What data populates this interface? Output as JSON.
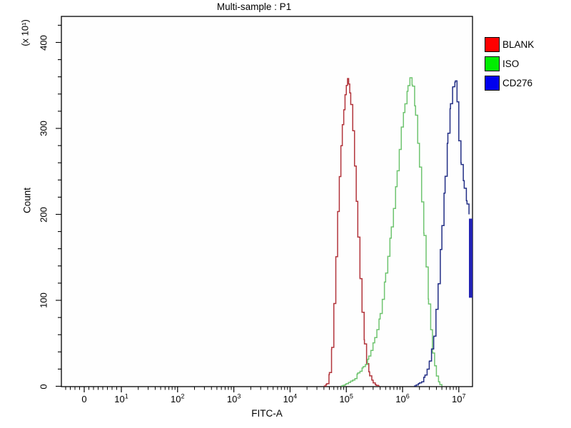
{
  "title": "Multi-sample : P1",
  "axes": {
    "x_label": "FITC-A",
    "y_label": "Count",
    "y_unit_note": "(x 10¹)"
  },
  "legend": {
    "items": [
      {
        "label": "BLANK",
        "color": "#ff0000"
      },
      {
        "label": "ISO",
        "color": "#00ee00"
      },
      {
        "label": "CD276",
        "color": "#0000ee"
      }
    ]
  },
  "chart_data": {
    "type": "line",
    "subtype": "flow-cytometry-histogram-overlay",
    "title": "Multi-sample : P1",
    "xlabel": "FITC-A",
    "ylabel": "Count",
    "y_unit_multiplier": "(x 10¹)",
    "x_scale": "biexponential-log",
    "x_ticks": [
      0,
      10,
      100,
      1000,
      10000,
      100000,
      1000000,
      10000000
    ],
    "y_ticks": [
      0,
      100,
      200,
      300,
      400
    ],
    "ylim": [
      0,
      430
    ],
    "grid": false,
    "legend_position": "outside-top-right",
    "series": [
      {
        "name": "BLANK",
        "legend_color": "#ff0000",
        "line_color": "#b2343b",
        "peak_x": 105000,
        "peak_count": 357,
        "points": [
          [
            40000,
            0
          ],
          [
            45000,
            3
          ],
          [
            50000,
            15
          ],
          [
            55000,
            45
          ],
          [
            60000,
            95
          ],
          [
            65000,
            150
          ],
          [
            70000,
            205
          ],
          [
            75000,
            245
          ],
          [
            80000,
            280
          ],
          [
            85000,
            305
          ],
          [
            90000,
            322
          ],
          [
            95000,
            338
          ],
          [
            100000,
            348
          ],
          [
            105000,
            357
          ],
          [
            110000,
            352
          ],
          [
            115000,
            342
          ],
          [
            120000,
            328
          ],
          [
            130000,
            298
          ],
          [
            140000,
            258
          ],
          [
            150000,
            215
          ],
          [
            160000,
            172
          ],
          [
            175000,
            125
          ],
          [
            190000,
            85
          ],
          [
            210000,
            50
          ],
          [
            230000,
            28
          ],
          [
            260000,
            12
          ],
          [
            300000,
            4
          ],
          [
            340000,
            1
          ],
          [
            380000,
            0
          ]
        ]
      },
      {
        "name": "ISO",
        "legend_color": "#00ee00",
        "line_color": "#6ec46f",
        "peak_x": 1350000,
        "peak_count": 360,
        "points": [
          [
            80000,
            0
          ],
          [
            100000,
            3
          ],
          [
            130000,
            8
          ],
          [
            160000,
            14
          ],
          [
            200000,
            22
          ],
          [
            250000,
            35
          ],
          [
            320000,
            55
          ],
          [
            400000,
            85
          ],
          [
            500000,
            130
          ],
          [
            630000,
            185
          ],
          [
            800000,
            250
          ],
          [
            950000,
            300
          ],
          [
            1100000,
            330
          ],
          [
            1250000,
            350
          ],
          [
            1350000,
            360
          ],
          [
            1500000,
            348
          ],
          [
            1700000,
            315
          ],
          [
            2000000,
            255
          ],
          [
            2400000,
            175
          ],
          [
            2900000,
            95
          ],
          [
            3400000,
            40
          ],
          [
            4000000,
            12
          ],
          [
            4600000,
            2
          ],
          [
            5000000,
            0
          ]
        ]
      },
      {
        "name": "CD276",
        "legend_color": "#0000ee",
        "line_color": "#222e85",
        "peak_x": 8700000,
        "peak_count": 355,
        "points": [
          [
            1600000,
            0
          ],
          [
            2000000,
            4
          ],
          [
            2500000,
            12
          ],
          [
            3000000,
            28
          ],
          [
            3600000,
            60
          ],
          [
            4300000,
            120
          ],
          [
            5000000,
            185
          ],
          [
            5700000,
            245
          ],
          [
            6400000,
            295
          ],
          [
            7100000,
            330
          ],
          [
            7800000,
            347
          ],
          [
            8700000,
            355
          ],
          [
            9300000,
            330
          ],
          [
            10000000,
            285
          ],
          [
            11000000,
            260
          ],
          [
            12500000,
            230
          ],
          [
            14000000,
            212
          ],
          [
            15200000,
            200
          ]
        ],
        "max_channel_bar": {
          "x": 15800000,
          "count_from": 103,
          "count_to": 195,
          "color": "#2323b4"
        }
      }
    ]
  }
}
